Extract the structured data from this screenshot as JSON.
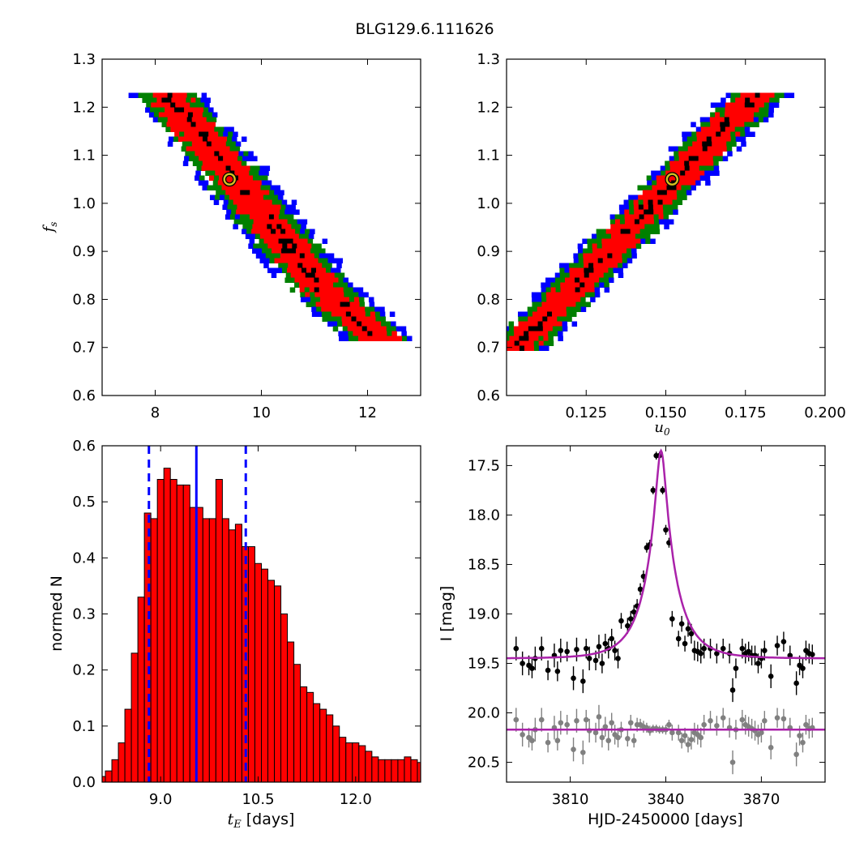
{
  "figure_title": "BLG129.6.111626",
  "chart_data": [
    {
      "type": "heatmap",
      "xlim": [
        7,
        13
      ],
      "ylim": [
        0.6,
        1.3
      ],
      "xticks": [
        8,
        10,
        12
      ],
      "yticks": [
        0.6,
        0.7,
        0.8,
        0.9,
        1.0,
        1.1,
        1.2,
        1.3
      ],
      "xlabel": "",
      "ylabel": "f_s",
      "levels": [
        "black",
        "red",
        "green",
        "blue"
      ],
      "best_fit": {
        "x": 9.4,
        "y": 1.05
      },
      "band_center": [
        [
          8.2,
          1.23
        ],
        [
          9.0,
          1.12
        ],
        [
          10.0,
          0.98
        ],
        [
          11.0,
          0.84
        ],
        [
          12.2,
          0.72
        ]
      ]
    },
    {
      "type": "heatmap",
      "xlim": [
        0.1,
        0.2
      ],
      "ylim": [
        0.6,
        1.3
      ],
      "xticks": [
        0.125,
        0.15,
        0.175,
        0.2
      ],
      "xticklabels": [
        "0.125",
        "0.150",
        "0.175",
        "0.200"
      ],
      "yticks": [
        0.6,
        0.7,
        0.8,
        0.9,
        1.0,
        1.1,
        1.2,
        1.3
      ],
      "xlabel": "u_0",
      "ylabel": "",
      "levels": [
        "black",
        "red",
        "green",
        "blue"
      ],
      "best_fit": {
        "x": 0.152,
        "y": 1.05
      },
      "band_center": [
        [
          0.102,
          0.7
        ],
        [
          0.125,
          0.86
        ],
        [
          0.152,
          1.05
        ],
        [
          0.17,
          1.18
        ],
        [
          0.178,
          1.23
        ]
      ]
    },
    {
      "type": "bar",
      "xlim": [
        8.1,
        13.0
      ],
      "ylim": [
        0.0,
        0.6
      ],
      "xticks": [
        9.0,
        10.5,
        12.0
      ],
      "xticklabels": [
        "9.0",
        "10.5",
        "12.0"
      ],
      "yticks": [
        0.0,
        0.1,
        0.2,
        0.3,
        0.4,
        0.5,
        0.6
      ],
      "xlabel": "t_E [days]",
      "ylabel": "normed N",
      "bin_start": 8.05,
      "bin_width": 0.1,
      "values": [
        0.01,
        0.02,
        0.04,
        0.07,
        0.13,
        0.23,
        0.33,
        0.48,
        0.47,
        0.54,
        0.56,
        0.54,
        0.53,
        0.53,
        0.49,
        0.49,
        0.47,
        0.47,
        0.54,
        0.47,
        0.45,
        0.46,
        0.42,
        0.42,
        0.39,
        0.38,
        0.36,
        0.35,
        0.3,
        0.25,
        0.21,
        0.17,
        0.16,
        0.14,
        0.13,
        0.12,
        0.1,
        0.08,
        0.07,
        0.07,
        0.065,
        0.055,
        0.045,
        0.04,
        0.04,
        0.04,
        0.04,
        0.045,
        0.04,
        0.035,
        0.03,
        0.025,
        0.015,
        0.01,
        0.008,
        0.005,
        0.004,
        0.003,
        0.002
      ],
      "median": 9.55,
      "percentiles": [
        8.82,
        10.31
      ],
      "bar_color": "#ff0000"
    },
    {
      "type": "scatter",
      "xlim": [
        3790,
        3890
      ],
      "ylim": [
        20.7,
        17.3
      ],
      "xticks": [
        3810,
        3840,
        3870
      ],
      "yticks": [
        17.5,
        18.0,
        18.5,
        19.0,
        19.5,
        20.0,
        20.5
      ],
      "yticklabels": [
        "17.5",
        "18.0",
        "18.5",
        "19.0",
        "19.5",
        "20.0",
        "20.5"
      ],
      "xlabel": "HJD-2450000 [days]",
      "ylabel": "I [mag]",
      "model": {
        "t0": 3838.5,
        "u0": 0.152,
        "tE": 9.4,
        "fs": 1.05,
        "base": 19.45,
        "color": "#aa22aa"
      },
      "residual_model_level": 20.17,
      "series": [
        {
          "color": "#000000",
          "x": [
            3789,
            3793,
            3795,
            3797,
            3798,
            3799,
            3801,
            3803,
            3805,
            3806,
            3807,
            3809,
            3811,
            3812,
            3814,
            3815,
            3816,
            3818,
            3819,
            3820,
            3821,
            3822,
            3823,
            3824,
            3825,
            3826,
            3828,
            3829,
            3830,
            3831,
            3832,
            3833,
            3834,
            3835,
            3836,
            3837,
            3838,
            3839,
            3840,
            3841,
            3842,
            3844,
            3845,
            3846,
            3847,
            3848,
            3849,
            3850,
            3851,
            3852,
            3854,
            3856,
            3858,
            3860,
            3861,
            3862,
            3864,
            3865,
            3866,
            3867,
            3868,
            3869,
            3870,
            3871,
            3873,
            3875,
            3877,
            3879,
            3881,
            3882,
            3883,
            3884,
            3885,
            3886
          ],
          "y": [
            19.7,
            19.35,
            19.5,
            19.52,
            19.55,
            19.45,
            19.35,
            19.57,
            19.42,
            19.58,
            19.37,
            19.38,
            19.65,
            19.36,
            19.68,
            19.35,
            19.45,
            19.47,
            19.33,
            19.5,
            19.3,
            19.35,
            19.25,
            19.37,
            19.45,
            19.07,
            19.12,
            19.05,
            18.98,
            18.92,
            18.75,
            18.62,
            18.33,
            18.3,
            17.75,
            17.4,
            17.4,
            17.75,
            18.15,
            18.28,
            19.05,
            19.25,
            19.1,
            19.3,
            19.15,
            19.2,
            19.37,
            19.38,
            19.4,
            19.35,
            19.35,
            19.4,
            19.35,
            19.4,
            19.77,
            19.55,
            19.35,
            19.4,
            19.38,
            19.42,
            19.42,
            19.5,
            19.45,
            19.37,
            19.63,
            19.32,
            19.28,
            19.42,
            19.7,
            19.52,
            19.55,
            19.37,
            19.4,
            19.41
          ],
          "yerr": [
            0.1,
            0.12,
            0.12,
            0.1,
            0.1,
            0.12,
            0.12,
            0.1,
            0.12,
            0.1,
            0.12,
            0.1,
            0.12,
            0.12,
            0.12,
            0.1,
            0.12,
            0.1,
            0.12,
            0.1,
            0.1,
            0.1,
            0.1,
            0.1,
            0.1,
            0.08,
            0.08,
            0.08,
            0.07,
            0.07,
            0.06,
            0.06,
            0.05,
            0.05,
            0.04,
            0.04,
            0.04,
            0.04,
            0.05,
            0.05,
            0.08,
            0.08,
            0.08,
            0.08,
            0.08,
            0.1,
            0.1,
            0.1,
            0.1,
            0.1,
            0.1,
            0.1,
            0.1,
            0.1,
            0.12,
            0.1,
            0.1,
            0.1,
            0.1,
            0.1,
            0.1,
            0.1,
            0.1,
            0.1,
            0.12,
            0.1,
            0.1,
            0.1,
            0.12,
            0.1,
            0.1,
            0.1,
            0.1,
            0.1
          ]
        },
        {
          "color": "#808080",
          "x": [
            3789,
            3793,
            3795,
            3797,
            3798,
            3799,
            3801,
            3803,
            3805,
            3806,
            3807,
            3809,
            3811,
            3812,
            3814,
            3815,
            3816,
            3818,
            3819,
            3820,
            3821,
            3822,
            3823,
            3824,
            3825,
            3826,
            3828,
            3829,
            3830,
            3831,
            3832,
            3833,
            3834,
            3835,
            3836,
            3837,
            3838,
            3839,
            3840,
            3841,
            3842,
            3844,
            3845,
            3846,
            3847,
            3848,
            3849,
            3850,
            3851,
            3852,
            3854,
            3856,
            3858,
            3860,
            3861,
            3862,
            3864,
            3865,
            3866,
            3867,
            3868,
            3869,
            3870,
            3871,
            3873,
            3875,
            3877,
            3879,
            3881,
            3882,
            3883,
            3884,
            3885,
            3886
          ],
          "y": [
            20.4,
            20.07,
            20.22,
            20.25,
            20.28,
            20.17,
            20.07,
            20.3,
            20.15,
            20.28,
            20.1,
            20.12,
            20.37,
            20.08,
            20.4,
            20.07,
            20.18,
            20.2,
            20.04,
            20.25,
            20.14,
            20.28,
            20.1,
            20.22,
            20.25,
            20.17,
            20.26,
            20.1,
            20.28,
            20.12,
            20.12,
            20.14,
            20.15,
            20.18,
            20.16,
            20.16,
            20.17,
            20.17,
            20.17,
            20.12,
            20.2,
            20.2,
            20.28,
            20.23,
            20.32,
            20.27,
            20.2,
            20.22,
            20.25,
            20.12,
            20.08,
            20.13,
            20.05,
            20.15,
            20.5,
            20.17,
            20.07,
            20.12,
            20.14,
            20.16,
            20.18,
            20.22,
            20.2,
            20.08,
            20.35,
            20.05,
            20.06,
            20.15,
            20.42,
            20.23,
            20.3,
            20.12,
            20.16,
            20.15
          ],
          "yerr": [
            0.1,
            0.12,
            0.12,
            0.1,
            0.1,
            0.12,
            0.12,
            0.1,
            0.12,
            0.1,
            0.12,
            0.1,
            0.12,
            0.12,
            0.12,
            0.1,
            0.12,
            0.1,
            0.12,
            0.1,
            0.1,
            0.1,
            0.1,
            0.1,
            0.1,
            0.08,
            0.08,
            0.08,
            0.07,
            0.07,
            0.06,
            0.06,
            0.05,
            0.05,
            0.04,
            0.04,
            0.04,
            0.04,
            0.05,
            0.05,
            0.08,
            0.08,
            0.08,
            0.08,
            0.08,
            0.1,
            0.1,
            0.1,
            0.1,
            0.1,
            0.1,
            0.1,
            0.1,
            0.1,
            0.12,
            0.1,
            0.1,
            0.1,
            0.1,
            0.1,
            0.1,
            0.1,
            0.1,
            0.1,
            0.12,
            0.1,
            0.1,
            0.1,
            0.12,
            0.1,
            0.1,
            0.1,
            0.1,
            0.1
          ]
        }
      ]
    }
  ]
}
